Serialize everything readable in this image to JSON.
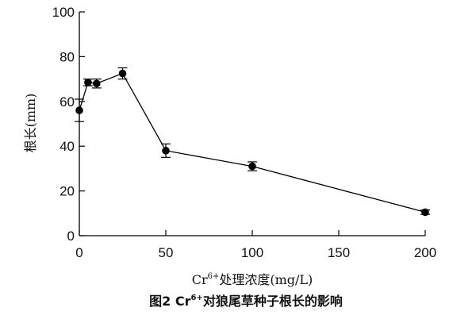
{
  "chart_data": {
    "type": "line",
    "xlabel": {
      "prefix": "Cr",
      "sup": "6+",
      "rest": "处理浓度(mg/L)"
    },
    "ylabel": "根长(mm)",
    "caption": {
      "prefix": "图2    Cr",
      "sup": "6+",
      "rest": "对狼尾草种子根长的影响"
    },
    "xlim": [
      0,
      200
    ],
    "ylim": [
      0,
      100
    ],
    "xticks": [
      0,
      50,
      100,
      150,
      200
    ],
    "yticks": [
      0,
      20,
      40,
      60,
      80,
      100
    ],
    "grid": false,
    "series": [
      {
        "color": "#000000",
        "x": [
          0,
          5,
          10,
          25,
          50,
          100,
          200
        ],
        "y": [
          56,
          68.5,
          68,
          72.5,
          38,
          31,
          10.5
        ],
        "err": [
          5,
          1.5,
          2,
          2.5,
          3,
          2,
          1
        ]
      }
    ]
  }
}
